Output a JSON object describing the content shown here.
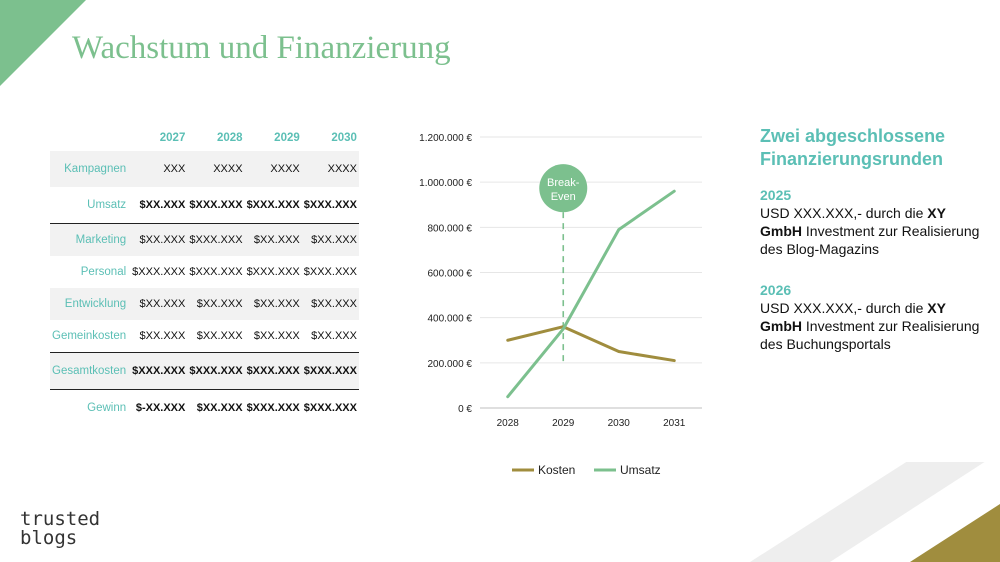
{
  "slide": {
    "title": "Wachstum und Finanzierung"
  },
  "table": {
    "years": [
      "2027",
      "2028",
      "2029",
      "2030"
    ],
    "rows": [
      {
        "label": "Kampagnen",
        "values": [
          "XXX",
          "XXXX",
          "XXXX",
          "XXXX"
        ]
      },
      {
        "label": "Umsatz",
        "values": [
          "$XX.XXX",
          "$XXX.XXX",
          "$XXX.XXX",
          "$XXX.XXX"
        ]
      },
      {
        "label": "Marketing",
        "values": [
          "$XX.XXX",
          "$XXX.XXX",
          "$XX.XXX",
          "$XX.XXX"
        ]
      },
      {
        "label": "Personal",
        "values": [
          "$XXX.XXX",
          "$XXX.XXX",
          "$XXX.XXX",
          "$XXX.XXX"
        ]
      },
      {
        "label": "Entwicklung",
        "values": [
          "$XX.XXX",
          "$XX.XXX",
          "$XX.XXX",
          "$XX.XXX"
        ]
      },
      {
        "label": "Gemeinkosten",
        "values": [
          "$XX.XXX",
          "$XX.XXX",
          "$XX.XXX",
          "$XX.XXX"
        ]
      },
      {
        "label": "Gesamtkosten",
        "values": [
          "$XXX.XXX",
          "$XXX.XXX",
          "$XXX.XXX",
          "$XXX.XXX"
        ]
      },
      {
        "label": "Gewinn",
        "values": [
          "$-XX.XXX",
          "$XX.XXX",
          "$XXX.XXX",
          "$XXX.XXX"
        ]
      }
    ]
  },
  "chart_data": {
    "type": "line",
    "x": [
      "2028",
      "2029",
      "2030",
      "2031"
    ],
    "series": [
      {
        "name": "Kosten",
        "values": [
          300000,
          360000,
          250000,
          210000
        ],
        "color": "#a08d3e"
      },
      {
        "name": "Umsatz",
        "values": [
          50000,
          350000,
          790000,
          960000
        ],
        "color": "#7cc08e"
      }
    ],
    "yticks": [
      0,
      200000,
      400000,
      600000,
      800000,
      1000000,
      1200000
    ],
    "ytick_labels": [
      "0 €",
      "200.000 €",
      "400.000 €",
      "600.000 €",
      "800.000 €",
      "1.000.000 €",
      "1.200.000 €"
    ],
    "ylim": [
      0,
      1200000
    ],
    "grid": true,
    "legend_position": "bottom",
    "annotation": {
      "text_line1": "Break-",
      "text_line2": "Even",
      "x": "2029"
    }
  },
  "funding": {
    "title_line1": "Zwei abgeschlossene",
    "title_line2": "Finanzierungsrunden",
    "rounds": [
      {
        "year": "2025",
        "text_pre": "USD XXX.XXX,- durch die ",
        "text_bold": "XY GmbH",
        "text_post": " Investment zur Realisierung des Blog-Magazins"
      },
      {
        "year": "2026",
        "text_pre": "USD XXX.XXX,-  durch die ",
        "text_bold": "XY GmbH",
        "text_post": " Investment zur Realisierung des Buchungsportals"
      }
    ]
  },
  "logo": {
    "line1": "trusted",
    "line2": "blogs"
  },
  "colors": {
    "accent_green": "#7cc08e",
    "accent_teal": "#5bbfb5",
    "accent_gold": "#a08d3e"
  }
}
